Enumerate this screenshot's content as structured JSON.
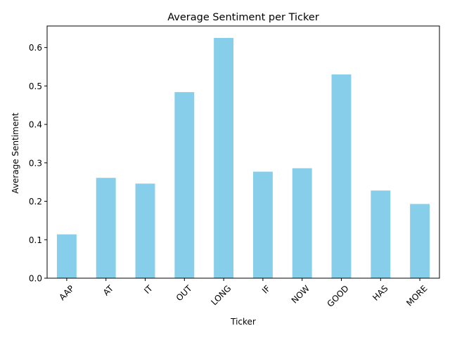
{
  "chart_data": {
    "type": "bar",
    "title": "Average Sentiment per Ticker",
    "xlabel": "Ticker",
    "ylabel": "Average Sentiment",
    "categories": [
      "AAP",
      "AT",
      "IT",
      "OUT",
      "LONG",
      "IF",
      "NOW",
      "GOOD",
      "HAS",
      "MORE"
    ],
    "values": [
      0.114,
      0.261,
      0.246,
      0.484,
      0.625,
      0.277,
      0.286,
      0.53,
      0.228,
      0.193
    ],
    "ylim": [
      0,
      0.656
    ],
    "yticks": [
      0.0,
      0.1,
      0.2,
      0.3,
      0.4,
      0.5,
      0.6
    ],
    "ytick_labels": [
      "0.0",
      "0.1",
      "0.2",
      "0.3",
      "0.4",
      "0.5",
      "0.6"
    ],
    "grid": false,
    "legend": "none",
    "bar_color": "#87ceeb"
  }
}
